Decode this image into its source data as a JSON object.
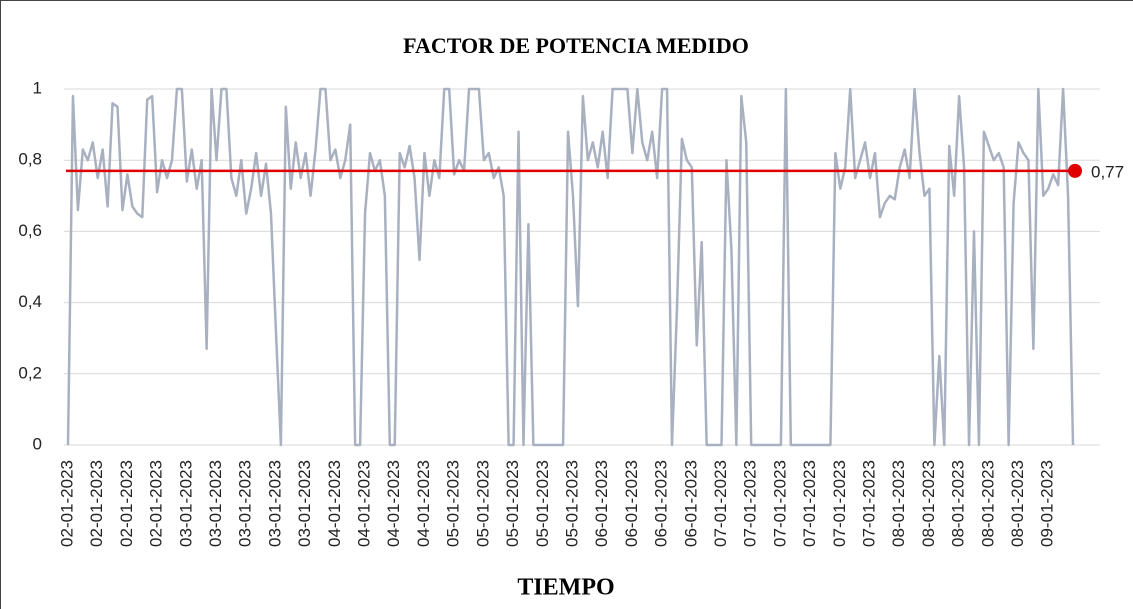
{
  "chart_data": {
    "type": "line",
    "title": "FACTOR DE POTENCIA MEDIDO",
    "x_label": "TIEMPO",
    "categories": [
      "02-01-2023",
      null,
      null,
      null,
      null,
      null,
      "02-01-2023",
      null,
      null,
      null,
      null,
      null,
      "02-01-2023",
      null,
      null,
      null,
      null,
      null,
      "02-01-2023",
      null,
      null,
      null,
      null,
      null,
      "03-01-2023",
      null,
      null,
      null,
      null,
      null,
      "03-01-2023",
      null,
      null,
      null,
      null,
      null,
      "03-01-2023",
      null,
      null,
      null,
      null,
      null,
      "03-01-2023",
      null,
      null,
      null,
      null,
      null,
      "03-01-2023",
      null,
      null,
      null,
      null,
      null,
      "04-01-2023",
      null,
      null,
      null,
      null,
      null,
      "04-01-2023",
      null,
      null,
      null,
      null,
      null,
      "04-01-2023",
      null,
      null,
      null,
      null,
      null,
      "04-01-2023",
      null,
      null,
      null,
      null,
      null,
      "05-01-2023",
      null,
      null,
      null,
      null,
      null,
      "05-01-2023",
      null,
      null,
      null,
      null,
      null,
      "05-01-2023",
      null,
      null,
      null,
      null,
      null,
      "05-01-2023",
      null,
      null,
      null,
      null,
      null,
      "05-01-2023",
      null,
      null,
      null,
      null,
      null,
      "06-01-2023",
      null,
      null,
      null,
      null,
      null,
      "06-01-2023",
      null,
      null,
      null,
      null,
      null,
      "06-01-2023",
      null,
      null,
      null,
      null,
      null,
      "06-01-2023",
      null,
      null,
      null,
      null,
      null,
      "07-01-2023",
      null,
      null,
      null,
      null,
      null,
      "07-01-2023",
      null,
      null,
      null,
      null,
      null,
      "07-01-2023",
      null,
      null,
      null,
      null,
      null,
      "07-01-2023",
      null,
      null,
      null,
      null,
      null,
      "07-01-2023",
      null,
      null,
      null,
      null,
      null,
      "07-01-2023",
      null,
      null,
      null,
      null,
      null,
      "08-01-2023",
      null,
      null,
      null,
      null,
      null,
      "08-01-2023",
      null,
      null,
      null,
      null,
      null,
      "08-01-2023",
      null,
      null,
      null,
      null,
      null,
      "08-01-2023",
      null,
      null,
      null,
      null,
      null,
      "08-01-2023",
      null,
      null,
      null,
      null,
      null,
      "09-01-2023",
      null,
      null,
      null,
      null,
      null
    ],
    "series": [
      {
        "color": "#a9b1c1",
        "values": [
          0,
          0.98,
          0.66,
          0.83,
          0.8,
          0.85,
          0.75,
          0.83,
          0.67,
          0.96,
          0.95,
          0.66,
          0.76,
          0.67,
          0.65,
          0.64,
          0.97,
          0.98,
          0.71,
          0.8,
          0.75,
          0.8,
          1,
          1,
          0.74,
          0.83,
          0.72,
          0.8,
          0.27,
          1,
          0.8,
          1,
          1,
          0.75,
          0.7,
          0.8,
          0.65,
          0.72,
          0.82,
          0.7,
          0.79,
          0.65,
          0.32,
          0,
          0.95,
          0.72,
          0.85,
          0.75,
          0.82,
          0.7,
          0.83,
          1,
          1,
          0.8,
          0.83,
          0.75,
          0.8,
          0.9,
          0,
          0,
          0.65,
          0.82,
          0.77,
          0.8,
          0.7,
          0,
          0,
          0.82,
          0.78,
          0.84,
          0.75,
          0.52,
          0.82,
          0.7,
          0.8,
          0.75,
          1,
          1,
          0.76,
          0.8,
          0.77,
          1,
          1,
          1,
          0.8,
          0.82,
          0.75,
          0.78,
          0.7,
          0,
          0,
          0.88,
          0,
          0.62,
          0,
          0,
          0,
          0,
          0,
          0,
          0,
          0.88,
          0.7,
          0.39,
          0.98,
          0.8,
          0.85,
          0.78,
          0.88,
          0.75,
          1,
          1,
          1,
          1,
          0.82,
          1,
          0.85,
          0.8,
          0.88,
          0.75,
          1,
          1,
          0,
          0.38,
          0.86,
          0.8,
          0.78,
          0.28,
          0.57,
          0,
          0,
          0,
          0,
          0.8,
          0.55,
          0,
          0.98,
          0.85,
          0,
          0,
          0,
          0,
          0,
          0,
          0,
          1,
          0,
          0,
          0,
          0,
          0,
          0,
          0,
          0,
          0,
          0.82,
          0.72,
          0.78,
          1,
          0.75,
          0.8,
          0.85,
          0.75,
          0.82,
          0.64,
          0.68,
          0.7,
          0.69,
          0.78,
          0.83,
          0.75,
          1,
          0.82,
          0.7,
          0.72,
          0,
          0.25,
          0,
          0.84,
          0.7,
          0.98,
          0.78,
          0,
          0.6,
          0,
          0.88,
          0.84,
          0.8,
          0.82,
          0.78,
          0,
          0.68,
          0.85,
          0.82,
          0.8,
          0.27,
          1,
          0.7,
          0.72,
          0.76,
          0.73,
          1,
          0.7,
          0
        ]
      }
    ],
    "reference": {
      "value": 0.77,
      "label": "0,77",
      "color": "#e00000"
    },
    "ylim": [
      0,
      1
    ],
    "yticks": [
      0,
      {
        "value": 0.2,
        "label": "0,2"
      },
      {
        "value": 0.4,
        "label": "0,4"
      },
      {
        "value": 0.6,
        "label": "0,6"
      },
      {
        "value": 0.8,
        "label": "0,8"
      },
      1
    ],
    "grid": true
  }
}
